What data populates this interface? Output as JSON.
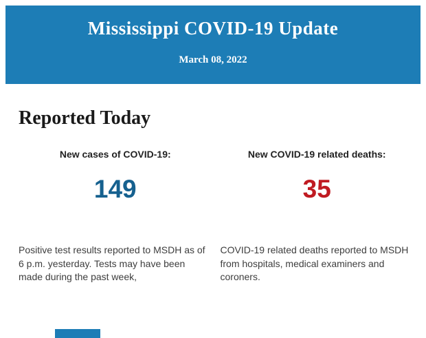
{
  "colors": {
    "header_bg": "#1d7db6",
    "cases_color": "#16618f",
    "deaths_color": "#c01b22",
    "text_color": "#3d3d3d",
    "heading_color": "#1a1a1a"
  },
  "header": {
    "title": "Mississippi COVID-19 Update",
    "date": "March 08, 2022"
  },
  "main": {
    "section_title": "Reported Today",
    "stats": [
      {
        "label": "New cases of COVID-19:",
        "value": "149",
        "description": "Positive test results reported to MSDH as of 6 p.m. yesterday. Tests may have been made during the past week,"
      },
      {
        "label": "New COVID-19 related deaths:",
        "value": "35",
        "description": "COVID-19 related deaths reported to MSDH from hospitals, medical examiners and coroners."
      }
    ]
  }
}
